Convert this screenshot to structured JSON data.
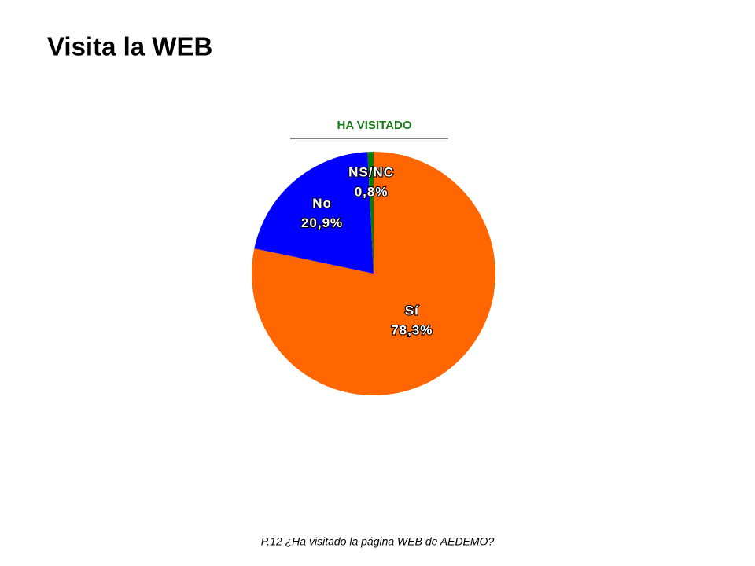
{
  "page": {
    "title": "Visita la WEB",
    "footnote": "P.12 ¿Ha visitado la página WEB de AEDEMO?"
  },
  "chart_data": {
    "type": "pie",
    "title": "HA VISITADO",
    "categories": [
      "Sí",
      "No",
      "NS/NC"
    ],
    "values": [
      78.3,
      20.9,
      0.8
    ],
    "value_labels": [
      "78,3%",
      "20,9%",
      "0,8%"
    ],
    "colors": [
      "#ff6600",
      "#0000ff",
      "#008000"
    ]
  }
}
